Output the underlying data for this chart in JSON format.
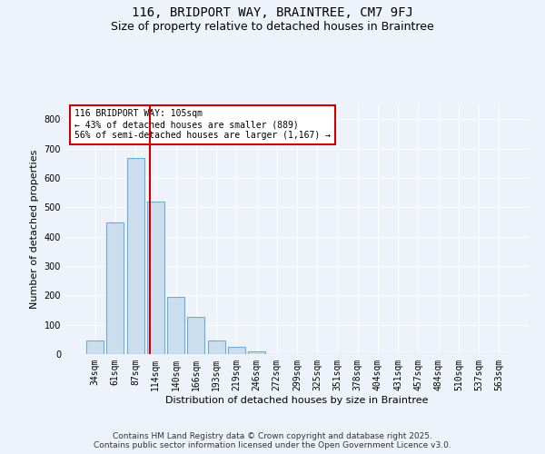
{
  "title_line1": "116, BRIDPORT WAY, BRAINTREE, CM7 9FJ",
  "title_line2": "Size of property relative to detached houses in Braintree",
  "xlabel": "Distribution of detached houses by size in Braintree",
  "ylabel": "Number of detached properties",
  "bar_color": "#ccdded",
  "bar_edge_color": "#6aaed6",
  "background_color": "#eef2fa",
  "grid_color": "#ffffff",
  "categories": [
    "34sqm",
    "61sqm",
    "87sqm",
    "114sqm",
    "140sqm",
    "166sqm",
    "193sqm",
    "219sqm",
    "246sqm",
    "272sqm",
    "299sqm",
    "325sqm",
    "351sqm",
    "378sqm",
    "404sqm",
    "431sqm",
    "457sqm",
    "484sqm",
    "510sqm",
    "537sqm",
    "563sqm"
  ],
  "values": [
    47,
    449,
    667,
    519,
    196,
    126,
    47,
    26,
    9,
    0,
    0,
    0,
    0,
    0,
    0,
    0,
    0,
    0,
    0,
    0,
    0
  ],
  "ylim": [
    0,
    850
  ],
  "yticks": [
    0,
    100,
    200,
    300,
    400,
    500,
    600,
    700,
    800
  ],
  "vline_x": 2.72,
  "vline_color": "#cc0000",
  "annotation_text": "116 BRIDPORT WAY: 105sqm\n← 43% of detached houses are smaller (889)\n56% of semi-detached houses are larger (1,167) →",
  "annotation_box_color": "#ffffff",
  "annotation_box_edge_color": "#cc0000",
  "footer_text": "Contains HM Land Registry data © Crown copyright and database right 2025.\nContains public sector information licensed under the Open Government Licence v3.0.",
  "title_fontsize": 10,
  "subtitle_fontsize": 9,
  "tick_fontsize": 7,
  "label_fontsize": 8,
  "footer_fontsize": 6.5
}
